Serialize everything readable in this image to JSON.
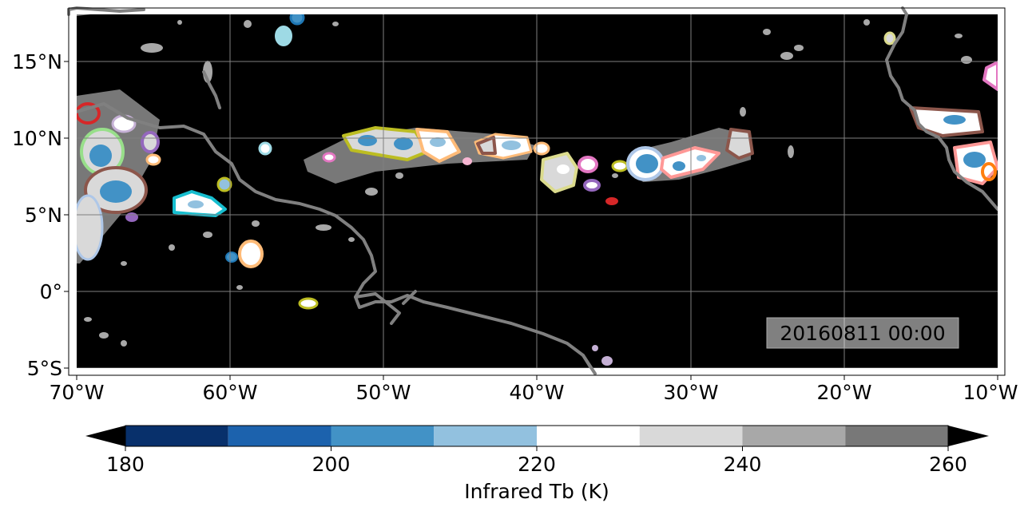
{
  "map": {
    "lat_ticks": [
      "15°N",
      "10°N",
      "5°N",
      "0°",
      "5°S"
    ],
    "lon_ticks": [
      "70°W",
      "60°W",
      "50°W",
      "40°W",
      "30°W",
      "20°W",
      "10°W"
    ],
    "timestamp": "20160811 00:00",
    "background_color": "#000000",
    "coastline_color": "#808080"
  },
  "colorbar": {
    "label": "Infrared Tb (K)",
    "tick_labels": [
      "180",
      "200",
      "220",
      "240",
      "260"
    ],
    "bins": [
      {
        "from": 180,
        "to": 190,
        "color": "#08306b"
      },
      {
        "from": 190,
        "to": 200,
        "color": "#1c62ad"
      },
      {
        "from": 200,
        "to": 210,
        "color": "#4292c6"
      },
      {
        "from": 210,
        "to": 220,
        "color": "#92c1df"
      },
      {
        "from": 220,
        "to": 230,
        "color": "#ffffff"
      },
      {
        "from": 230,
        "to": 240,
        "color": "#d9d9d9"
      },
      {
        "from": 240,
        "to": 250,
        "color": "#a8a8a8"
      },
      {
        "from": 250,
        "to": 260,
        "color": "#787878"
      }
    ],
    "under_color": "#000000",
    "over_color": "#000000"
  },
  "track_colors": [
    "#1f77b4",
    "#ff7f0e",
    "#2ca02c",
    "#d62728",
    "#9467bd",
    "#8c564b",
    "#e377c2",
    "#bcbd22",
    "#17becf",
    "#aec7e8",
    "#ffbb78",
    "#98df8a",
    "#ff9896",
    "#c5b0d5",
    "#c49c94",
    "#f7b6d2",
    "#dbdb8d",
    "#9edae5"
  ]
}
